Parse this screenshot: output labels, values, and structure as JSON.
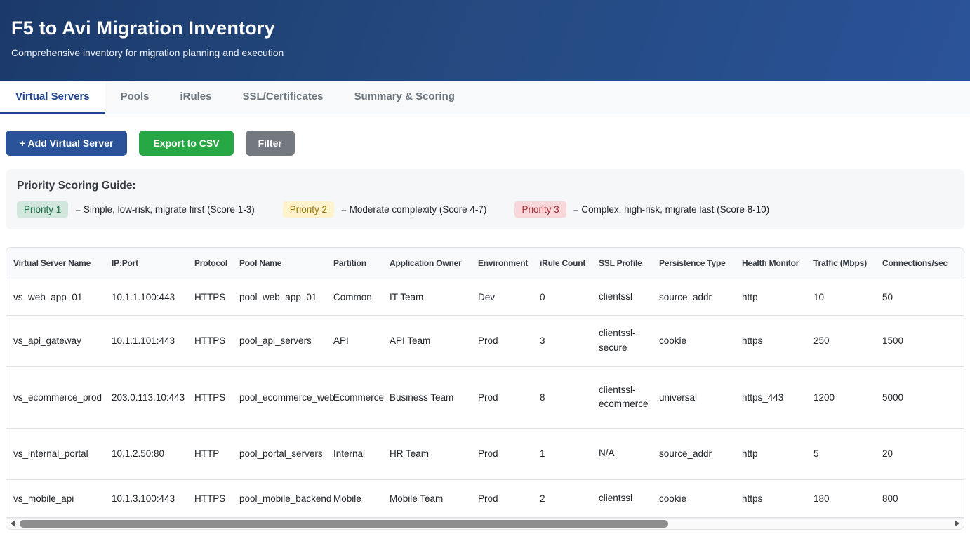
{
  "header": {
    "title": "F5 to Avi Migration Inventory",
    "subtitle": "Comprehensive inventory for migration planning and execution"
  },
  "tabs": [
    {
      "label": "Virtual Servers",
      "active": true
    },
    {
      "label": "Pools",
      "active": false
    },
    {
      "label": "iRules",
      "active": false
    },
    {
      "label": "SSL/Certificates",
      "active": false
    },
    {
      "label": "Summary & Scoring",
      "active": false
    }
  ],
  "toolbar": {
    "add_button": "+ Add Virtual Server",
    "export_button": "Export to CSV",
    "filter_button": "Filter"
  },
  "priority_guide": {
    "heading": "Priority Scoring Guide:",
    "items": [
      {
        "badge": "Priority 1",
        "description": "= Simple, low-risk, migrate first (Score 1-3)",
        "badge_bg": "#d1e7dd",
        "badge_color": "#146c43"
      },
      {
        "badge": "Priority 2",
        "description": "= Moderate complexity (Score 4-7)",
        "badge_bg": "#fff3cd",
        "badge_color": "#997404"
      },
      {
        "badge": "Priority 3",
        "description": "= Complex, high-risk, migrate last (Score 8-10)",
        "badge_bg": "#f8d7da",
        "badge_color": "#a52834"
      }
    ]
  },
  "table": {
    "columns": [
      "Virtual Server Name",
      "IP:Port",
      "Protocol",
      "Pool Name",
      "Partition",
      "Application Owner",
      "Environment",
      "iRule Count",
      "SSL Profile",
      "Persistence Type",
      "Health Monitor",
      "Traffic (Mbps)",
      "Connections/sec"
    ],
    "rows": [
      [
        "vs_web_app_01",
        "10.1.1.100:443",
        "HTTPS",
        "pool_web_app_01",
        "Common",
        "IT Team",
        "Dev",
        "0",
        "clientssl",
        "source_addr",
        "http",
        "10",
        "50"
      ],
      [
        "vs_api_gateway",
        "10.1.1.101:443",
        "HTTPS",
        "pool_api_servers",
        "API",
        "API Team",
        "Prod",
        "3",
        "clientssl-secure",
        "cookie",
        "https",
        "250",
        "1500"
      ],
      [
        "vs_ecommerce_prod",
        "203.0.113.10:443",
        "HTTPS",
        "pool_ecommerce_web",
        "Ecommerce",
        "Business Team",
        "Prod",
        "8",
        "clientssl-ecommerce",
        "universal",
        "https_443",
        "1200",
        "5000"
      ],
      [
        "vs_internal_portal",
        "10.1.2.50:80",
        "HTTP",
        "pool_portal_servers",
        "Internal",
        "HR Team",
        "Prod",
        "1",
        "N/A",
        "source_addr",
        "http",
        "5",
        "20"
      ],
      [
        "vs_mobile_api",
        "10.1.3.100:443",
        "HTTPS",
        "pool_mobile_backend",
        "Mobile",
        "Mobile Team",
        "Prod",
        "2",
        "clientssl",
        "cookie",
        "https",
        "180",
        "800"
      ]
    ]
  },
  "colors": {
    "header_gradient_start": "#1b3a6b",
    "header_gradient_end": "#2a5298",
    "tab_active": "#1f4593",
    "button_add": "#2a5298",
    "button_export": "#28a745",
    "button_filter": "#73797f"
  }
}
